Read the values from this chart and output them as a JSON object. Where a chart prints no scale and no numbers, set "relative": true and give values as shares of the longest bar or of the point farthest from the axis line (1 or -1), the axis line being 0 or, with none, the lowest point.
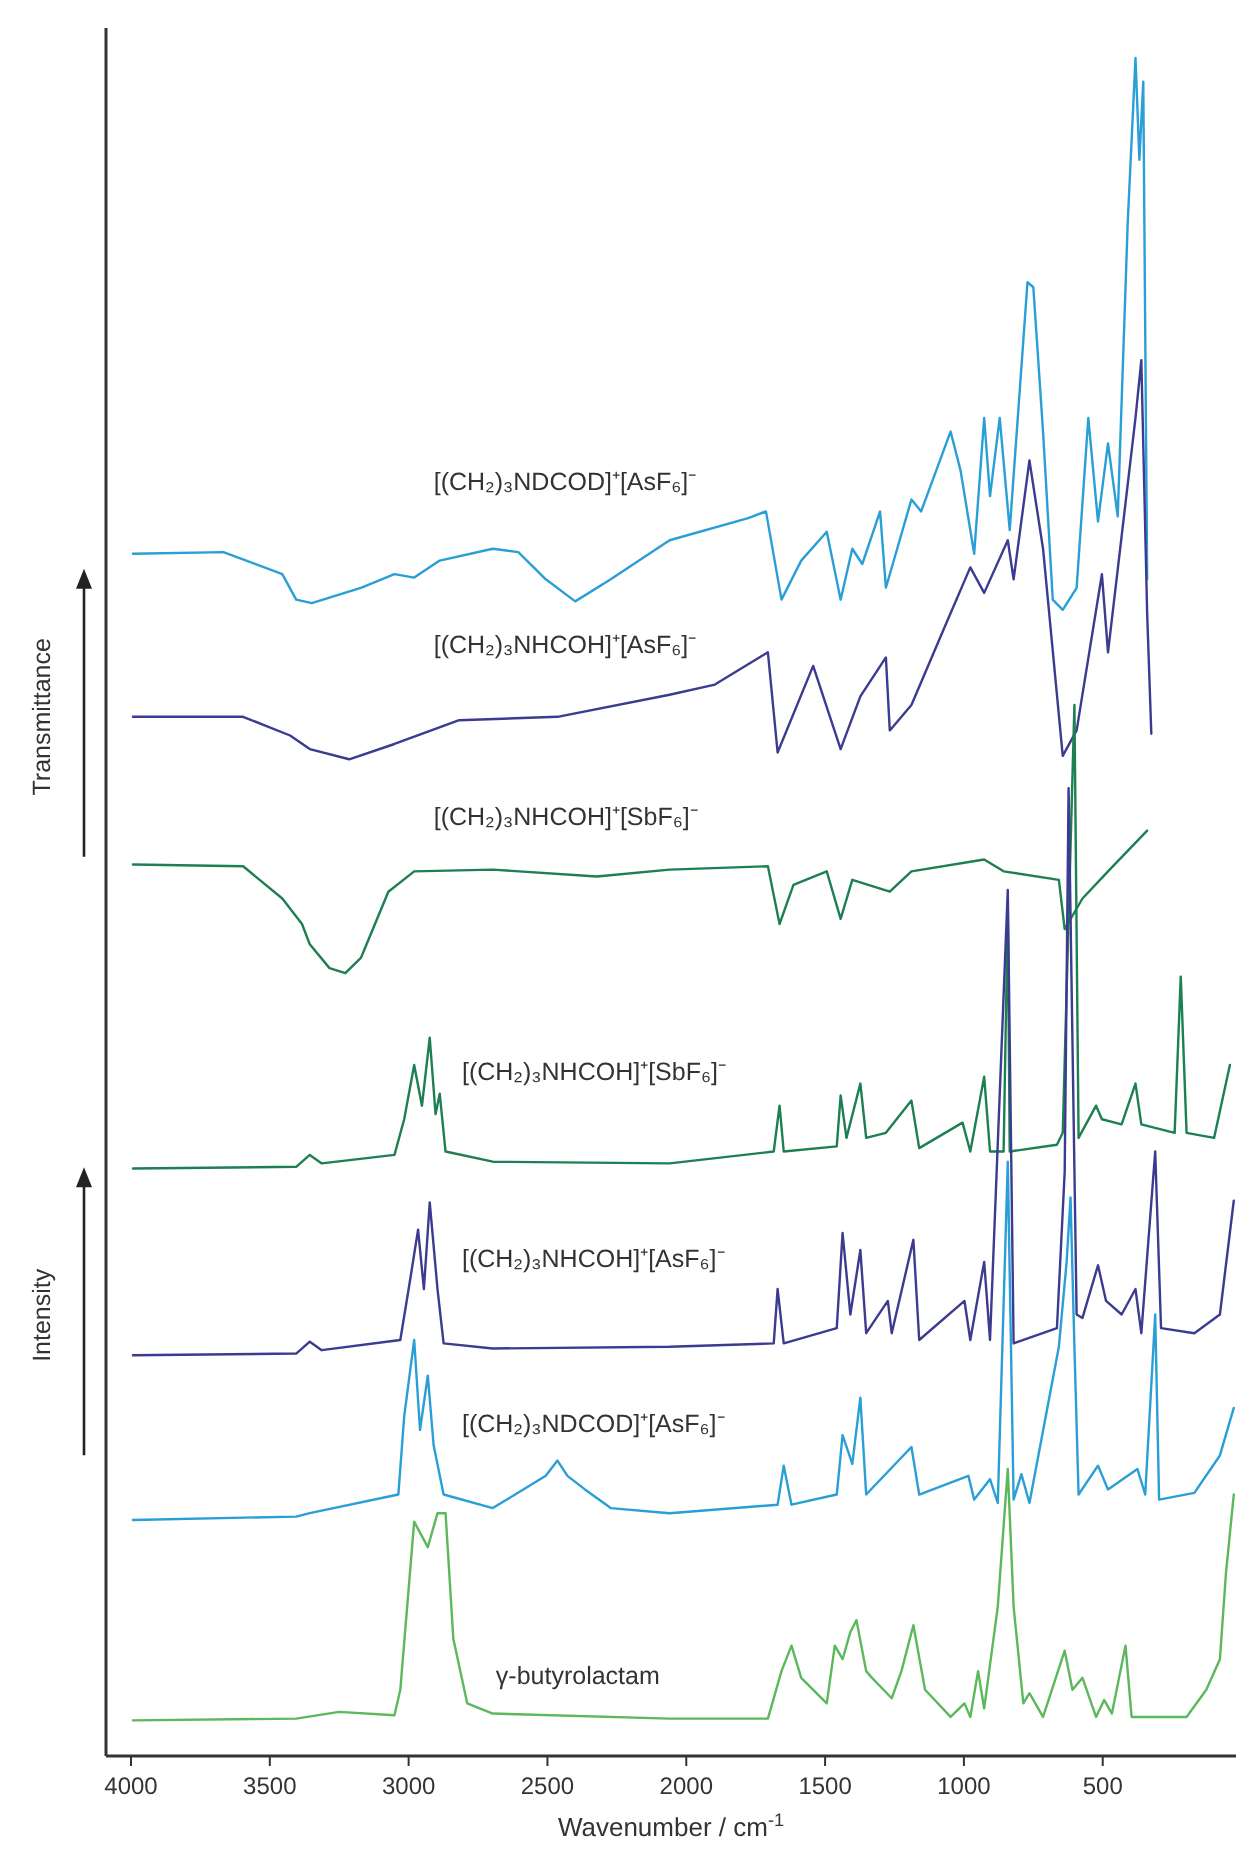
{
  "chart_data": {
    "type": "line",
    "relative": true,
    "xlabel": "Wavenumber / cm$^{-1}$",
    "xlim": [
      4090,
      20
    ],
    "xticks": [
      4000,
      3500,
      3000,
      2500,
      2000,
      1500,
      1000,
      500
    ],
    "annotations": [
      "Transmittance",
      "Intensity"
    ],
    "marker": "none",
    "line_style": "solid",
    "grid": false,
    "legend": false,
    "series": [
      {
        "name": "[(CH₂)₃NDCOD]⁺[AsF₆]⁻",
        "color": "#2a9fd6",
        "x": [
          3993,
          3667,
          3455,
          3405,
          3349,
          3172,
          3051,
          2980,
          2888,
          2697,
          2605,
          2506,
          2400,
          2272,
          2060,
          1777,
          1713,
          1657,
          1586,
          1494,
          1444,
          1402,
          1366,
          1302,
          1281,
          1189,
          1154,
          1048,
          1012,
          963,
          927,
          906,
          871,
          835,
          771,
          750,
          715,
          680,
          644,
          594,
          552,
          517,
          481,
          446,
          410,
          382,
          368,
          354,
          340
        ],
        "values": [
          0.708,
          0.709,
          0.696,
          0.681,
          0.679,
          0.688,
          0.696,
          0.694,
          0.704,
          0.711,
          0.709,
          0.693,
          0.68,
          0.693,
          0.716,
          0.729,
          0.733,
          0.681,
          0.704,
          0.721,
          0.681,
          0.711,
          0.702,
          0.733,
          0.688,
          0.74,
          0.733,
          0.78,
          0.757,
          0.708,
          0.788,
          0.742,
          0.788,
          0.722,
          0.868,
          0.865,
          0.78,
          0.681,
          0.675,
          0.688,
          0.788,
          0.727,
          0.773,
          0.73,
          0.903,
          1.0,
          0.94,
          0.986,
          0.693
        ]
      },
      {
        "name": "[(CH₂)₃NHCOH]⁺[AsF₆]⁻",
        "color": "#3b3b8f",
        "x": [
          3993,
          3596,
          3427,
          3356,
          3214,
          3051,
          2818,
          2464,
          2060,
          1897,
          1706,
          1671,
          1543,
          1444,
          1373,
          1281,
          1267,
          1189,
          1069,
          977,
          927,
          842,
          821,
          764,
          715,
          644,
          594,
          503,
          481,
          382,
          361,
          340,
          325
        ],
        "values": [
          0.612,
          0.612,
          0.601,
          0.593,
          0.587,
          0.596,
          0.61,
          0.612,
          0.625,
          0.631,
          0.65,
          0.591,
          0.642,
          0.593,
          0.624,
          0.647,
          0.604,
          0.619,
          0.665,
          0.7,
          0.685,
          0.716,
          0.693,
          0.763,
          0.711,
          0.589,
          0.604,
          0.696,
          0.65,
          0.788,
          0.822,
          0.673,
          0.602
        ]
      },
      {
        "name": "[(CH₂)₃NHCOH]⁺[SbF₆]⁻",
        "color": "#1e7f52",
        "x": [
          3993,
          3596,
          3455,
          3384,
          3356,
          3285,
          3228,
          3172,
          3073,
          2980,
          2697,
          2322,
          2060,
          1706,
          1664,
          1614,
          1494,
          1444,
          1402,
          1267,
          1189,
          927,
          857,
          658,
          637,
          573,
          481,
          340
        ],
        "values": [
          0.525,
          0.524,
          0.505,
          0.49,
          0.478,
          0.464,
          0.461,
          0.47,
          0.509,
          0.521,
          0.522,
          0.518,
          0.522,
          0.524,
          0.49,
          0.513,
          0.521,
          0.493,
          0.516,
          0.509,
          0.521,
          0.528,
          0.521,
          0.516,
          0.487,
          0.505,
          0.521,
          0.545
        ]
      },
      {
        "name": "[(CH₂)₃NHCOH]⁺[SbF₆]⁻",
        "color": "#1e7f52",
        "x": [
          3993,
          3405,
          3356,
          3313,
          3051,
          3016,
          2980,
          2952,
          2924,
          2903,
          2888,
          2867,
          2697,
          2060,
          1685,
          1664,
          1649,
          1458,
          1444,
          1423,
          1373,
          1352,
          1281,
          1189,
          1161,
          1005,
          977,
          927,
          906,
          857,
          842,
          835,
          665,
          644,
          602,
          587,
          524,
          503,
          432,
          382,
          361,
          241,
          219,
          198,
          99,
          42
        ],
        "values": [
          0.346,
          0.347,
          0.354,
          0.349,
          0.354,
          0.375,
          0.407,
          0.383,
          0.423,
          0.378,
          0.39,
          0.356,
          0.35,
          0.349,
          0.356,
          0.383,
          0.356,
          0.359,
          0.389,
          0.364,
          0.396,
          0.364,
          0.367,
          0.386,
          0.358,
          0.373,
          0.356,
          0.4,
          0.356,
          0.356,
          0.5,
          0.356,
          0.36,
          0.367,
          0.619,
          0.364,
          0.383,
          0.375,
          0.372,
          0.396,
          0.372,
          0.367,
          0.459,
          0.367,
          0.364,
          0.407
        ]
      },
      {
        "name": "[(CH₂)₃NHCOH]⁺[AsF₆]⁻",
        "color": "#3b3b8f",
        "x": [
          3993,
          3405,
          3356,
          3313,
          3030,
          2995,
          2966,
          2945,
          2924,
          2896,
          2874,
          2697,
          2060,
          1685,
          1671,
          1649,
          1458,
          1437,
          1409,
          1373,
          1352,
          1274,
          1260,
          1182,
          1161,
          998,
          977,
          927,
          906,
          842,
          821,
          665,
          637,
          623,
          594,
          573,
          517,
          488,
          432,
          382,
          361,
          311,
          290,
          170,
          78,
          28
        ],
        "values": [
          0.236,
          0.237,
          0.244,
          0.239,
          0.245,
          0.28,
          0.31,
          0.275,
          0.326,
          0.275,
          0.243,
          0.24,
          0.241,
          0.243,
          0.275,
          0.243,
          0.252,
          0.308,
          0.26,
          0.298,
          0.249,
          0.268,
          0.249,
          0.304,
          0.245,
          0.268,
          0.245,
          0.291,
          0.245,
          0.51,
          0.243,
          0.252,
          0.344,
          0.57,
          0.26,
          0.258,
          0.289,
          0.268,
          0.26,
          0.275,
          0.249,
          0.356,
          0.252,
          0.249,
          0.26,
          0.327
        ]
      },
      {
        "name": "[(CH₂)₃NDCOD]⁺[AsF₆]⁻",
        "color": "#2a9fd6",
        "x": [
          3993,
          3405,
          3356,
          3037,
          3016,
          2980,
          2959,
          2931,
          2910,
          2874,
          2697,
          2506,
          2464,
          2428,
          2365,
          2272,
          2060,
          1671,
          1649,
          1621,
          1458,
          1437,
          1402,
          1373,
          1352,
          1189,
          1161,
          984,
          963,
          906,
          878,
          842,
          821,
          793,
          764,
          658,
          630,
          616,
          602,
          587,
          517,
          481,
          375,
          347,
          311,
          297,
          170,
          78,
          28
        ],
        "values": [
          0.139,
          0.141,
          0.143,
          0.154,
          0.2,
          0.245,
          0.192,
          0.224,
          0.183,
          0.154,
          0.146,
          0.165,
          0.174,
          0.165,
          0.157,
          0.146,
          0.143,
          0.148,
          0.171,
          0.148,
          0.154,
          0.189,
          0.172,
          0.211,
          0.154,
          0.182,
          0.154,
          0.165,
          0.151,
          0.163,
          0.149,
          0.35,
          0.151,
          0.166,
          0.149,
          0.241,
          0.291,
          0.329,
          0.241,
          0.154,
          0.171,
          0.157,
          0.169,
          0.154,
          0.26,
          0.151,
          0.155,
          0.177,
          0.205
        ]
      },
      {
        "name": "γ-butyrolactam",
        "color": "#5cb85c",
        "x": [
          3993,
          3405,
          3250,
          3051,
          3030,
          2980,
          2931,
          2896,
          2867,
          2839,
          2789,
          2697,
          2060,
          1706,
          1657,
          1621,
          1586,
          1494,
          1465,
          1437,
          1409,
          1387,
          1352,
          1331,
          1260,
          1225,
          1182,
          1140,
          1048,
          998,
          977,
          949,
          927,
          878,
          842,
          821,
          786,
          764,
          715,
          637,
          609,
          573,
          524,
          495,
          467,
          418,
          396,
          198,
          127,
          78,
          56,
          28
        ],
        "values": [
          0.021,
          0.022,
          0.026,
          0.024,
          0.039,
          0.138,
          0.123,
          0.143,
          0.143,
          0.069,
          0.031,
          0.025,
          0.022,
          0.022,
          0.05,
          0.065,
          0.046,
          0.031,
          0.065,
          0.057,
          0.073,
          0.08,
          0.05,
          0.046,
          0.034,
          0.05,
          0.077,
          0.039,
          0.023,
          0.031,
          0.023,
          0.05,
          0.028,
          0.088,
          0.169,
          0.088,
          0.031,
          0.037,
          0.023,
          0.062,
          0.039,
          0.046,
          0.023,
          0.033,
          0.025,
          0.065,
          0.023,
          0.023,
          0.039,
          0.057,
          0.108,
          0.154
        ]
      }
    ]
  }
}
